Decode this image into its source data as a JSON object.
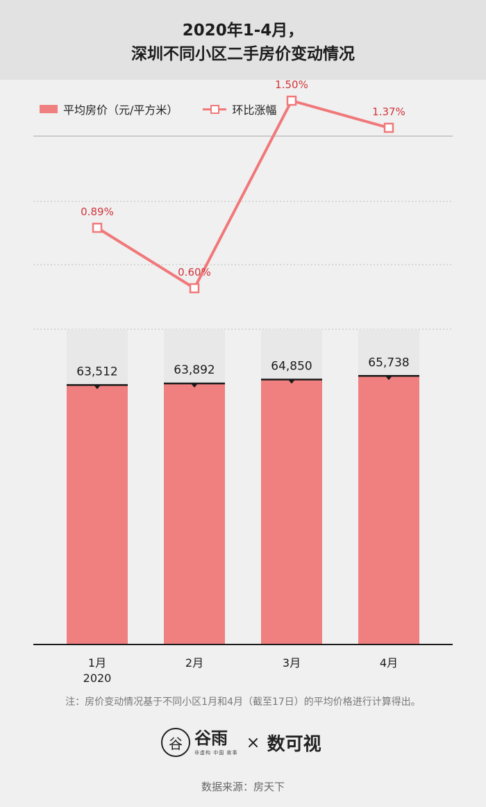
{
  "header": {
    "title_line1": "2020年1-4月，",
    "title_line2": "深圳不同小区二手房价变动情况"
  },
  "legend": {
    "bar_label": "平均房价（元/平方米）",
    "line_label": "环比涨幅"
  },
  "colors": {
    "bar": "#f08080",
    "bar_bg": "#e8e8e8",
    "line": "#f0787a",
    "line_label": "#d0343a",
    "value_line": "#1a1a1a"
  },
  "chart_data": {
    "type": "bar+line",
    "categories": [
      "1月",
      "2月",
      "3月",
      "4月"
    ],
    "category_sublabels": [
      "2020",
      "",
      "",
      ""
    ],
    "series": [
      {
        "name": "平均房价（元/平方米）",
        "type": "bar",
        "values": [
          63512,
          63892,
          64850,
          65738
        ],
        "value_labels": [
          "63,512",
          "63,892",
          "64,850",
          "65,738"
        ]
      },
      {
        "name": "环比涨幅",
        "type": "line",
        "values": [
          0.89,
          0.6,
          1.5,
          1.37
        ],
        "value_labels": [
          "0.89%",
          "0.60%",
          "1.50%",
          "1.37%"
        ]
      }
    ],
    "bar_axis_range": [
      0,
      68000
    ],
    "line_axis_range": [
      0.4,
      1.6
    ],
    "grid": true,
    "legend_position": "top-left"
  },
  "footnote": "注：房价变动情况基于不同小区1月和4月（截至17日）的平均价格进行计算得出。",
  "logos": {
    "logo1_icon": "谷",
    "logo1_name": "谷雨",
    "logo1_tagline": "非虚构 中国 故事",
    "separator": "×",
    "logo2_name": "数可视"
  },
  "source": "数据来源：房天下"
}
